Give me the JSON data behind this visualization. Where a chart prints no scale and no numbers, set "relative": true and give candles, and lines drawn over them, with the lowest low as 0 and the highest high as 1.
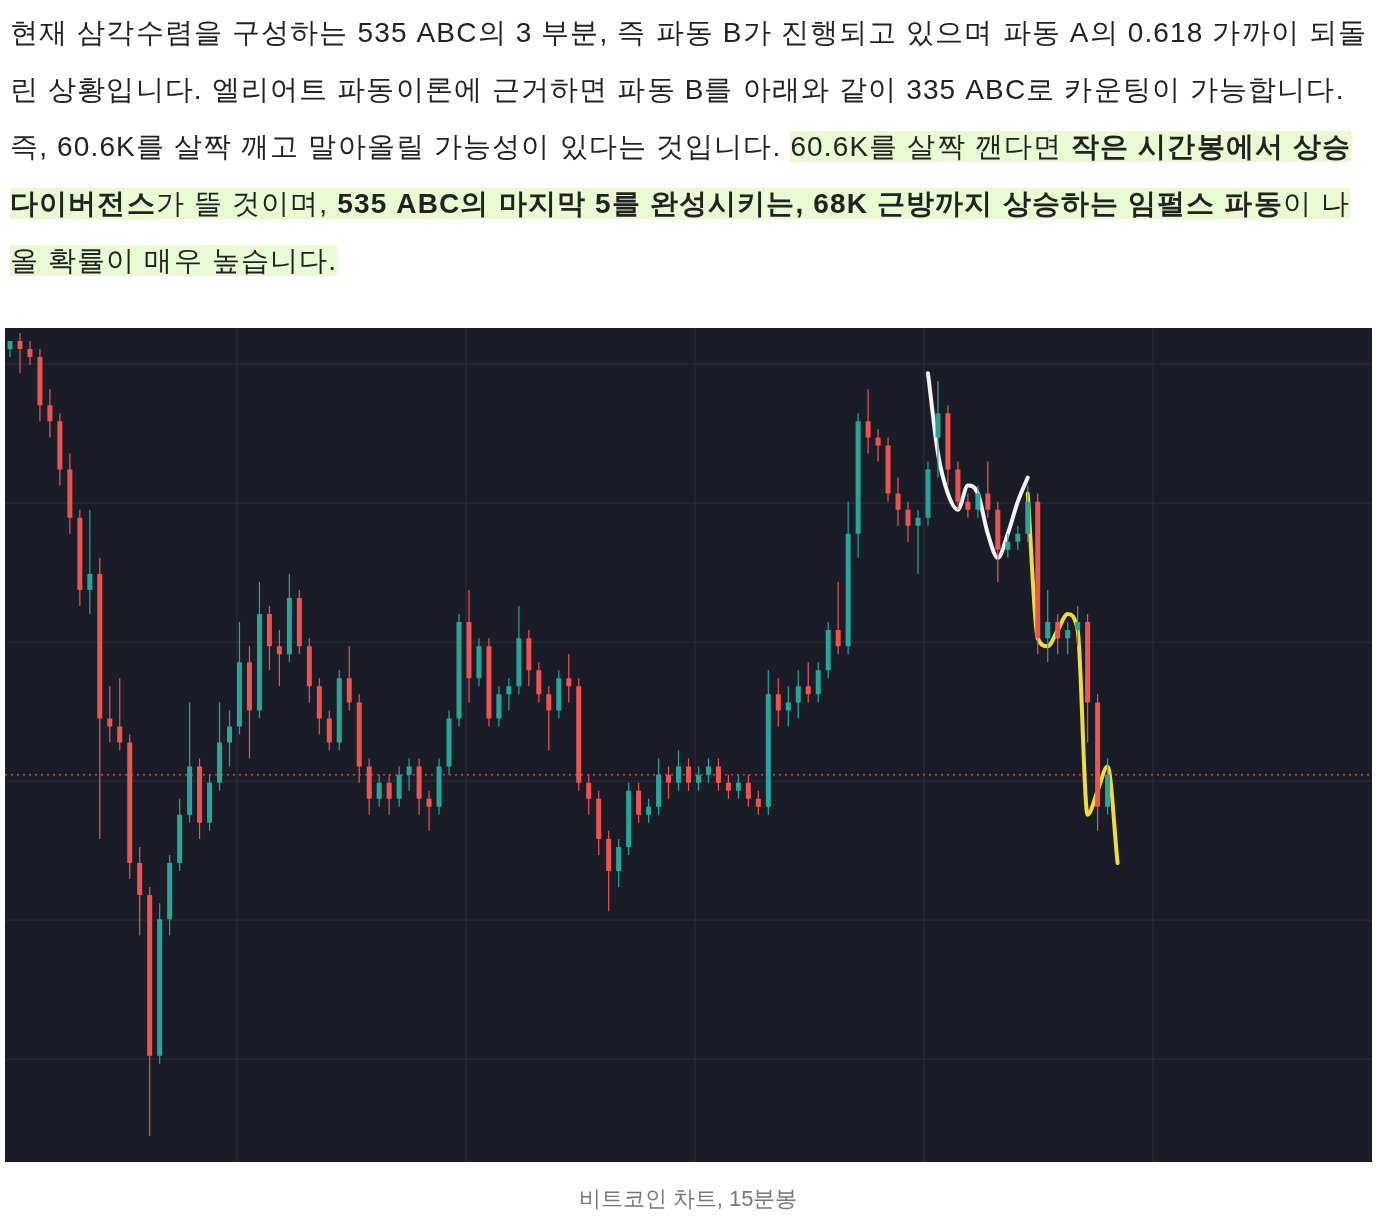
{
  "chart_data": {
    "type": "candlestick",
    "relative": true,
    "grid": true,
    "categories": [
      null,
      null,
      null,
      null,
      null,
      null,
      null,
      null,
      null,
      null,
      null,
      null,
      null,
      null,
      null,
      null,
      null,
      null,
      null,
      null,
      null,
      null,
      null,
      null,
      null,
      null,
      null,
      null,
      null,
      null,
      null,
      null,
      null,
      null,
      null,
      null,
      null,
      null,
      null,
      null,
      null,
      null,
      null,
      null,
      null,
      null,
      null,
      null,
      null,
      null,
      null,
      null,
      null,
      null,
      null,
      null,
      null,
      null,
      null,
      null,
      null,
      null,
      null,
      null,
      null,
      null,
      null,
      null,
      null,
      null,
      null,
      null,
      null,
      null,
      null,
      null,
      null,
      null,
      null,
      null,
      null,
      null,
      null,
      null,
      null,
      null,
      null,
      null,
      null,
      null,
      null,
      null,
      null,
      null,
      null,
      null,
      null,
      null,
      null,
      null,
      null,
      null,
      null,
      null,
      null,
      null,
      null,
      null,
      null,
      null,
      null,
      null,
      null,
      null,
      null,
      null,
      null,
      null,
      null,
      null,
      null,
      null,
      null,
      null,
      null,
      null,
      null,
      null,
      null,
      null,
      null,
      null,
      null,
      null,
      null,
      null,
      null
    ],
    "ohlc": [
      [
        0.98,
        0.99,
        0.97,
        0.99
      ],
      [
        0.99,
        1.0,
        0.95,
        0.98
      ],
      [
        0.98,
        0.99,
        0.96,
        0.97
      ],
      [
        0.97,
        0.98,
        0.89,
        0.91
      ],
      [
        0.91,
        0.93,
        0.87,
        0.89
      ],
      [
        0.89,
        0.9,
        0.81,
        0.83
      ],
      [
        0.83,
        0.85,
        0.75,
        0.77
      ],
      [
        0.77,
        0.78,
        0.66,
        0.68
      ],
      [
        0.68,
        0.78,
        0.65,
        0.7
      ],
      [
        0.7,
        0.72,
        0.37,
        0.52
      ],
      [
        0.52,
        0.56,
        0.49,
        0.51
      ],
      [
        0.51,
        0.57,
        0.48,
        0.49
      ],
      [
        0.49,
        0.5,
        0.32,
        0.34
      ],
      [
        0.34,
        0.36,
        0.25,
        0.3
      ],
      [
        0.3,
        0.31,
        0.0,
        0.1
      ],
      [
        0.1,
        0.29,
        0.09,
        0.27
      ],
      [
        0.27,
        0.35,
        0.25,
        0.34
      ],
      [
        0.34,
        0.42,
        0.33,
        0.4
      ],
      [
        0.4,
        0.54,
        0.39,
        0.46
      ],
      [
        0.46,
        0.47,
        0.37,
        0.39
      ],
      [
        0.39,
        0.45,
        0.38,
        0.44
      ],
      [
        0.44,
        0.54,
        0.43,
        0.49
      ],
      [
        0.49,
        0.53,
        0.46,
        0.51
      ],
      [
        0.51,
        0.64,
        0.5,
        0.59
      ],
      [
        0.59,
        0.61,
        0.47,
        0.53
      ],
      [
        0.53,
        0.69,
        0.52,
        0.65
      ],
      [
        0.65,
        0.66,
        0.58,
        0.61
      ],
      [
        0.61,
        0.63,
        0.56,
        0.6
      ],
      [
        0.6,
        0.7,
        0.59,
        0.67
      ],
      [
        0.67,
        0.68,
        0.6,
        0.61
      ],
      [
        0.61,
        0.62,
        0.54,
        0.56
      ],
      [
        0.56,
        0.57,
        0.5,
        0.52
      ],
      [
        0.52,
        0.53,
        0.48,
        0.49
      ],
      [
        0.49,
        0.58,
        0.48,
        0.57
      ],
      [
        0.57,
        0.61,
        0.53,
        0.54
      ],
      [
        0.54,
        0.55,
        0.44,
        0.46
      ],
      [
        0.46,
        0.47,
        0.4,
        0.42
      ],
      [
        0.42,
        0.45,
        0.41,
        0.44
      ],
      [
        0.44,
        0.45,
        0.4,
        0.42
      ],
      [
        0.42,
        0.46,
        0.41,
        0.45
      ],
      [
        0.45,
        0.47,
        0.43,
        0.46
      ],
      [
        0.46,
        0.47,
        0.4,
        0.42
      ],
      [
        0.42,
        0.43,
        0.38,
        0.41
      ],
      [
        0.41,
        0.47,
        0.4,
        0.46
      ],
      [
        0.46,
        0.53,
        0.45,
        0.52
      ],
      [
        0.52,
        0.65,
        0.51,
        0.64
      ],
      [
        0.64,
        0.68,
        0.54,
        0.57
      ],
      [
        0.57,
        0.62,
        0.56,
        0.61
      ],
      [
        0.61,
        0.62,
        0.51,
        0.52
      ],
      [
        0.52,
        0.56,
        0.51,
        0.55
      ],
      [
        0.55,
        0.57,
        0.53,
        0.56
      ],
      [
        0.56,
        0.66,
        0.55,
        0.62
      ],
      [
        0.62,
        0.63,
        0.56,
        0.58
      ],
      [
        0.58,
        0.59,
        0.54,
        0.55
      ],
      [
        0.55,
        0.56,
        0.48,
        0.53
      ],
      [
        0.53,
        0.58,
        0.52,
        0.57
      ],
      [
        0.57,
        0.6,
        0.54,
        0.56
      ],
      [
        0.56,
        0.57,
        0.43,
        0.44
      ],
      [
        0.44,
        0.45,
        0.4,
        0.42
      ],
      [
        0.42,
        0.43,
        0.35,
        0.37
      ],
      [
        0.37,
        0.38,
        0.28,
        0.33
      ],
      [
        0.33,
        0.37,
        0.31,
        0.36
      ],
      [
        0.36,
        0.44,
        0.35,
        0.43
      ],
      [
        0.43,
        0.44,
        0.39,
        0.4
      ],
      [
        0.4,
        0.42,
        0.39,
        0.41
      ],
      [
        0.41,
        0.47,
        0.4,
        0.45
      ],
      [
        0.45,
        0.46,
        0.42,
        0.44
      ],
      [
        0.44,
        0.48,
        0.43,
        0.46
      ],
      [
        0.46,
        0.47,
        0.43,
        0.44
      ],
      [
        0.44,
        0.46,
        0.43,
        0.45
      ],
      [
        0.45,
        0.47,
        0.44,
        0.46
      ],
      [
        0.46,
        0.47,
        0.43,
        0.44
      ],
      [
        0.44,
        0.45,
        0.42,
        0.43
      ],
      [
        0.43,
        0.45,
        0.42,
        0.44
      ],
      [
        0.44,
        0.45,
        0.41,
        0.42
      ],
      [
        0.42,
        0.43,
        0.4,
        0.41
      ],
      [
        0.41,
        0.58,
        0.4,
        0.55
      ],
      [
        0.55,
        0.57,
        0.51,
        0.53
      ],
      [
        0.53,
        0.56,
        0.51,
        0.54
      ],
      [
        0.54,
        0.58,
        0.52,
        0.56
      ],
      [
        0.56,
        0.59,
        0.54,
        0.55
      ],
      [
        0.55,
        0.59,
        0.54,
        0.58
      ],
      [
        0.58,
        0.64,
        0.57,
        0.63
      ],
      [
        0.63,
        0.69,
        0.6,
        0.61
      ],
      [
        0.61,
        0.79,
        0.6,
        0.75
      ],
      [
        0.75,
        0.9,
        0.72,
        0.89
      ],
      [
        0.89,
        0.93,
        0.85,
        0.87
      ],
      [
        0.87,
        0.88,
        0.84,
        0.86
      ],
      [
        0.86,
        0.87,
        0.79,
        0.8
      ],
      [
        0.8,
        0.82,
        0.76,
        0.78
      ],
      [
        0.78,
        0.79,
        0.74,
        0.76
      ],
      [
        0.76,
        0.78,
        0.7,
        0.77
      ],
      [
        0.77,
        0.84,
        0.76,
        0.83
      ],
      [
        0.87,
        0.94,
        0.82,
        0.9
      ],
      [
        0.9,
        0.91,
        0.81,
        0.83
      ],
      [
        0.83,
        0.84,
        0.78,
        0.79
      ],
      [
        0.79,
        0.8,
        0.77,
        0.78
      ],
      [
        0.78,
        0.81,
        0.77,
        0.8
      ],
      [
        0.8,
        0.84,
        0.77,
        0.78
      ],
      [
        0.78,
        0.79,
        0.69,
        0.73
      ],
      [
        0.73,
        0.75,
        0.72,
        0.74
      ],
      [
        0.74,
        0.76,
        0.73,
        0.75
      ],
      [
        0.75,
        0.81,
        0.74,
        0.79
      ],
      [
        0.79,
        0.8,
        0.6,
        0.62
      ],
      [
        0.62,
        0.68,
        0.59,
        0.64
      ],
      [
        0.64,
        0.65,
        0.6,
        0.62
      ],
      [
        0.62,
        0.64,
        0.6,
        0.63
      ],
      [
        0.63,
        0.66,
        0.61,
        0.64
      ],
      [
        0.64,
        0.65,
        0.49,
        0.54
      ],
      [
        0.54,
        0.55,
        0.38,
        0.41
      ],
      [
        0.41,
        0.47,
        0.4,
        0.45
      ],
      null,
      null,
      null,
      null,
      null,
      null,
      null,
      null,
      null,
      null,
      null,
      null,
      null,
      null,
      null,
      null,
      null,
      null,
      null,
      null,
      null,
      null,
      null,
      null,
      null,
      null
    ],
    "colors": [
      "#26a69a",
      "#ef5350",
      "#ef5350",
      "#ef5350",
      "#ef5350",
      "#ef5350",
      "#ef5350",
      "#ef5350",
      "#26a69a",
      "#ef5350",
      "#ef5350",
      "#ef5350",
      "#ef5350",
      "#ef5350",
      "#ef5350",
      "#26a69a",
      "#26a69a",
      "#26a69a",
      "#26a69a",
      "#ef5350",
      "#26a69a",
      "#26a69a",
      "#26a69a",
      "#26a69a",
      "#ef5350",
      "#26a69a",
      "#ef5350",
      "#ef5350",
      "#26a69a",
      "#ef5350",
      "#ef5350",
      "#ef5350",
      "#ef5350",
      "#26a69a",
      "#ef5350",
      "#ef5350",
      "#ef5350",
      "#26a69a",
      "#ef5350",
      "#26a69a",
      "#26a69a",
      "#ef5350",
      "#ef5350",
      "#26a69a",
      "#26a69a",
      "#26a69a",
      "#ef5350",
      "#26a69a",
      "#ef5350",
      "#26a69a",
      "#26a69a",
      "#26a69a",
      "#ef5350",
      "#ef5350",
      "#ef5350",
      "#26a69a",
      "#ef5350",
      "#ef5350",
      "#ef5350",
      "#ef5350",
      "#ef5350",
      "#26a69a",
      "#26a69a",
      "#ef5350",
      "#26a69a",
      "#26a69a",
      "#ef5350",
      "#26a69a",
      "#ef5350",
      "#26a69a",
      "#26a69a",
      "#ef5350",
      "#ef5350",
      "#26a69a",
      "#ef5350",
      "#ef5350",
      "#26a69a",
      "#ef5350",
      "#26a69a",
      "#26a69a",
      "#ef5350",
      "#26a69a",
      "#26a69a",
      "#ef5350",
      "#26a69a",
      "#26a69a",
      "#ef5350",
      "#ef5350",
      "#ef5350",
      "#ef5350",
      "#ef5350",
      "#26a69a",
      "#26a69a",
      "#26a69a",
      "#ef5350",
      "#ef5350",
      "#ef5350",
      "#26a69a",
      "#ef5350",
      "#ef5350",
      "#26a69a",
      "#26a69a",
      "#26a69a",
      "#ef5350",
      "#26a69a",
      "#ef5350",
      "#26a69a",
      "#26a69a",
      "#ef5350",
      "#ef5350",
      "#26a69a",
      null,
      null,
      null,
      null,
      null,
      null,
      null,
      null,
      null,
      null,
      null,
      null,
      null,
      null,
      null,
      null,
      null,
      null,
      null,
      null,
      null,
      null,
      null,
      null,
      null,
      null
    ],
    "series": [
      {
        "type": "line",
        "color": "#f4f4f4",
        "values": [
          null,
          null,
          null,
          null,
          null,
          null,
          null,
          null,
          null,
          null,
          null,
          null,
          null,
          null,
          null,
          null,
          null,
          null,
          null,
          null,
          null,
          null,
          null,
          null,
          null,
          null,
          null,
          null,
          null,
          null,
          null,
          null,
          null,
          null,
          null,
          null,
          null,
          null,
          null,
          null,
          null,
          null,
          null,
          null,
          null,
          null,
          null,
          null,
          null,
          null,
          null,
          null,
          null,
          null,
          null,
          null,
          null,
          null,
          null,
          null,
          null,
          null,
          null,
          null,
          null,
          null,
          null,
          null,
          null,
          null,
          null,
          null,
          null,
          null,
          null,
          null,
          null,
          null,
          null,
          null,
          null,
          null,
          null,
          null,
          null,
          null,
          null,
          null,
          null,
          null,
          null,
          null,
          0.95,
          0.85,
          0.8,
          0.78,
          0.81,
          0.8,
          0.75,
          0.72,
          0.75,
          0.79,
          0.82,
          null,
          null,
          null,
          null,
          null,
          null,
          null,
          null,
          null,
          null,
          null,
          null,
          null,
          null,
          null,
          null,
          null,
          null,
          null,
          null,
          null,
          null,
          null,
          null,
          null,
          null,
          null,
          null,
          null,
          null,
          null,
          null,
          null,
          null
        ]
      },
      {
        "type": "line",
        "color": "#f2dc3c",
        "values": [
          null,
          null,
          null,
          null,
          null,
          null,
          null,
          null,
          null,
          null,
          null,
          null,
          null,
          null,
          null,
          null,
          null,
          null,
          null,
          null,
          null,
          null,
          null,
          null,
          null,
          null,
          null,
          null,
          null,
          null,
          null,
          null,
          null,
          null,
          null,
          null,
          null,
          null,
          null,
          null,
          null,
          null,
          null,
          null,
          null,
          null,
          null,
          null,
          null,
          null,
          null,
          null,
          null,
          null,
          null,
          null,
          null,
          null,
          null,
          null,
          null,
          null,
          null,
          null,
          null,
          null,
          null,
          null,
          null,
          null,
          null,
          null,
          null,
          null,
          null,
          null,
          null,
          null,
          null,
          null,
          null,
          null,
          null,
          null,
          null,
          null,
          null,
          null,
          null,
          null,
          null,
          null,
          null,
          null,
          null,
          null,
          null,
          null,
          null,
          null,
          null,
          null,
          0.8,
          0.62,
          0.61,
          0.63,
          0.65,
          0.63,
          0.4,
          0.43,
          0.46,
          0.34,
          null,
          null,
          null,
          null,
          null,
          null,
          null,
          null,
          null,
          null,
          null,
          null,
          null,
          null,
          null,
          null,
          null,
          null,
          null,
          null,
          null,
          null,
          null,
          null,
          null
        ]
      }
    ],
    "ref_lines": [
      {
        "axis": "y",
        "value": 0.45,
        "color": "#c0474a",
        "line_style": "dotted"
      }
    ],
    "annotations": [
      "현재 삼각수렴을 구성하는 535 ABC의 3 부분, 즉 파동 B가 진행되고 있으며 파동 A의 0.618 가까이 되돌린 상황입니다. 엘리어트 파동이론에 근거하면 파동 B를 아래와 같이 335 ABC로 카운팅이 가능합니다.",
      "즉, 60.6K를 살짝 깨고 말아올릴 가능성이 있다는 것입니다. ",
      "60.6K를 살짝 깬다면 ",
      "작은 시간봉에서 상승 다이버전스",
      "가 뜰 것이며, ",
      "535 ABC의 마지막 5를 완성시키는, 68K 근방까지 상승하는 임펄스 파동",
      "이 나올 확률이 매우 높습니다.",
      "비트코인 차트, 15분봉"
    ]
  }
}
